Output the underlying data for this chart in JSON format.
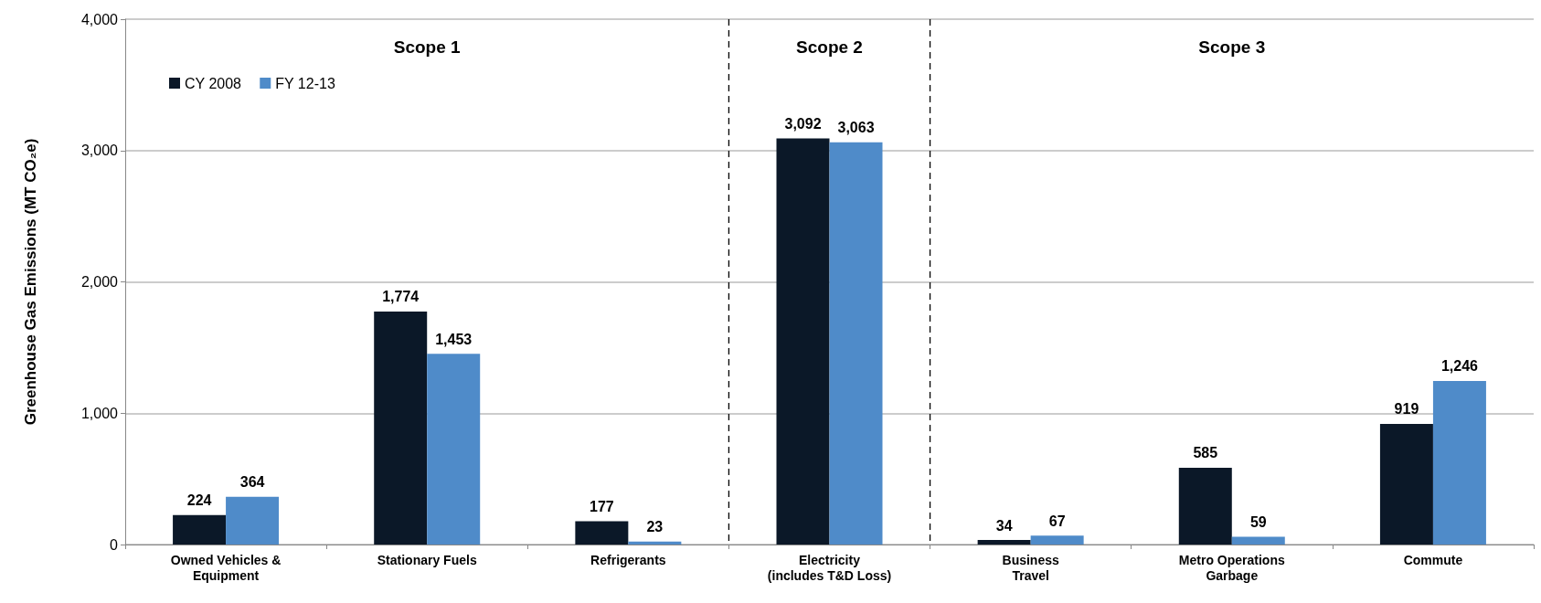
{
  "chart_data": {
    "type": "bar",
    "ylabel": "Greenhouse Gas Emissions (MT CO₂e)",
    "categories": [
      "Owned Vehicles &\nEquipment",
      "Stationary Fuels",
      "Refrigerants",
      "Electricity\n(includes T&D Loss)",
      "Business\nTravel",
      "Metro Operations\nGarbage",
      "Commute"
    ],
    "series": [
      {
        "name": "CY 2008",
        "color": "#0b1828",
        "values": [
          224,
          1774,
          177,
          3092,
          34,
          585,
          919
        ],
        "value_labels": [
          "224",
          "1,774",
          "177",
          "3,092",
          "34",
          "585",
          "919"
        ]
      },
      {
        "name": "FY 12-13",
        "color": "#4f8bc9",
        "values": [
          364,
          1453,
          23,
          3063,
          67,
          59,
          1246
        ],
        "value_labels": [
          "364",
          "1,453",
          "23",
          "3,063",
          "67",
          "59",
          "1,246"
        ]
      }
    ],
    "ylim": [
      0,
      4000
    ],
    "yticks": [
      {
        "value": 0,
        "label": "0"
      },
      {
        "value": 1000,
        "label": "1,000"
      },
      {
        "value": 2000,
        "label": "2,000"
      },
      {
        "value": 3000,
        "label": "3,000"
      },
      {
        "value": 4000,
        "label": "4,000"
      }
    ],
    "grid": "y",
    "legend": "top left",
    "annotations": [
      "Scope 1",
      "Scope 2",
      "Scope 3"
    ]
  }
}
